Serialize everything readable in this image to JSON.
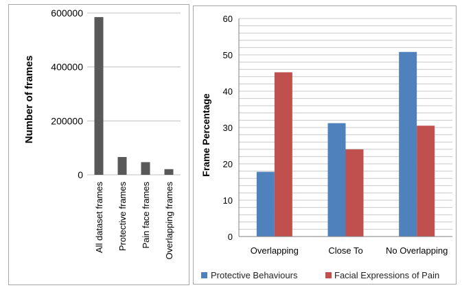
{
  "chart_data": [
    {
      "type": "bar",
      "categories": [
        "All dataset frames",
        "Protective  frames",
        "Pain face  frames",
        "Overlapping frames"
      ],
      "values": [
        585000,
        66000,
        47000,
        21000
      ],
      "ylabel": "Number of frames",
      "xlabel": "",
      "ylim": [
        0,
        600000
      ],
      "yticks": [
        "0",
        "200000",
        "400000",
        "600000"
      ],
      "grid": true,
      "colors": {
        "bar": "#595959",
        "grid": "#c0c0c0"
      }
    },
    {
      "type": "bar",
      "categories": [
        "Overlapping",
        "Close To",
        "No Overlapping"
      ],
      "series": [
        {
          "name": "Protective Behaviours",
          "values": [
            17.8,
            31.2,
            50.8
          ],
          "color": "#4f81bd"
        },
        {
          "name": "Facial Expressions of Pain",
          "values": [
            45.2,
            24.0,
            30.5
          ],
          "color": "#c0504d"
        }
      ],
      "ylabel": "Frame Percentage",
      "xlabel": "",
      "ylim": [
        0,
        60
      ],
      "yticks": [
        "0",
        "10",
        "20",
        "30",
        "40",
        "50",
        "60"
      ],
      "grid": true,
      "legend": "bottom",
      "colors": {
        "grid": "#c8c8c8"
      }
    }
  ]
}
